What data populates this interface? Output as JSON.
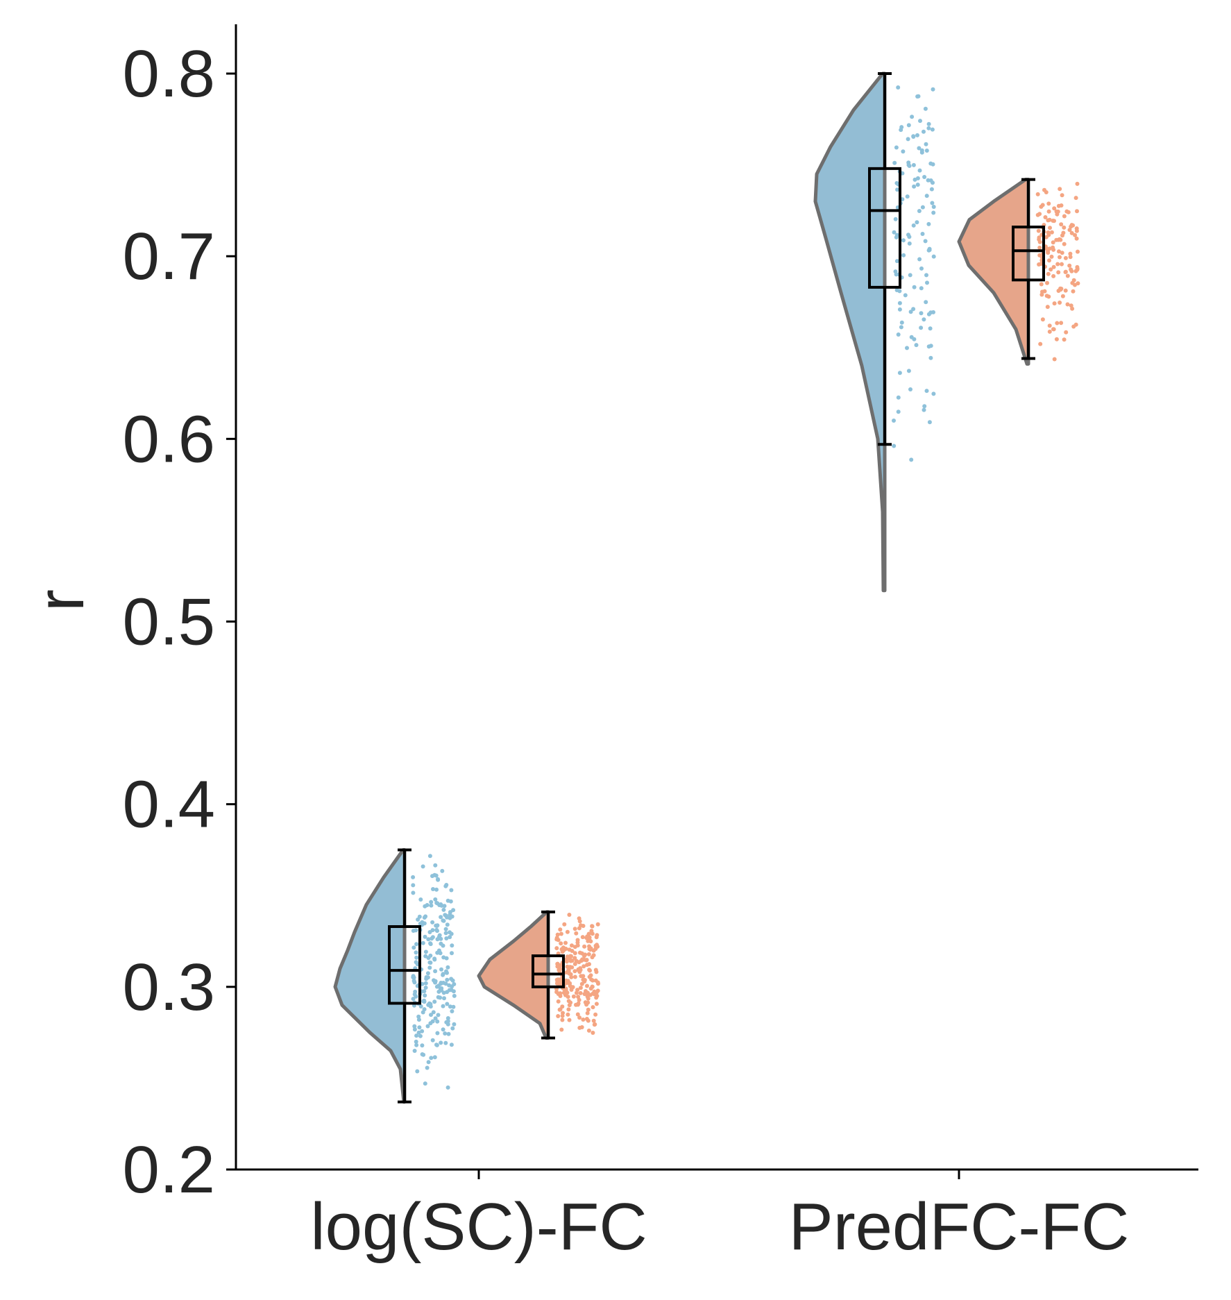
{
  "chart_data": {
    "type": "raincloud",
    "title": "",
    "xlabel": "",
    "ylabel": "r",
    "ylim": [
      0.2,
      0.825
    ],
    "yticks": [
      "0.2",
      "0.3",
      "0.4",
      "0.5",
      "0.6",
      "0.7",
      "0.8"
    ],
    "categories": [
      "log(SC)-FC",
      "PredFC-FC"
    ],
    "colors": {
      "group_a_fill": "#93bdd4",
      "group_a_points": "#8ec1da",
      "group_b_fill": "#e6a58a",
      "group_b_points": "#f4a582",
      "violin_edge": "#6e6e6e",
      "axis": "#000000"
    },
    "groups": [
      {
        "category": "log(SC)-FC",
        "series": [
          {
            "color_key": "a",
            "range": [
              0.237,
              0.375
            ],
            "box": {
              "whisker_low": 0.237,
              "q1": 0.291,
              "median": 0.309,
              "q3": 0.333,
              "whisker_high": 0.375
            },
            "density": [
              [
                0.237,
                0.01
              ],
              [
                0.255,
                0.06
              ],
              [
                0.265,
                0.2
              ],
              [
                0.275,
                0.5
              ],
              [
                0.29,
                0.9
              ],
              [
                0.3,
                1.0
              ],
              [
                0.31,
                0.93
              ],
              [
                0.32,
                0.82
              ],
              [
                0.33,
                0.72
              ],
              [
                0.345,
                0.55
              ],
              [
                0.36,
                0.3
              ],
              [
                0.375,
                0.02
              ]
            ],
            "n_points": 230
          },
          {
            "color_key": "b",
            "range": [
              0.272,
              0.341
            ],
            "box": {
              "whisker_low": 0.272,
              "q1": 0.3,
              "median": 0.307,
              "q3": 0.317,
              "whisker_high": 0.341
            },
            "density": [
              [
                0.272,
                0.03
              ],
              [
                0.28,
                0.12
              ],
              [
                0.29,
                0.5
              ],
              [
                0.3,
                0.92
              ],
              [
                0.306,
                1.0
              ],
              [
                0.315,
                0.84
              ],
              [
                0.325,
                0.5
              ],
              [
                0.333,
                0.25
              ],
              [
                0.341,
                0.02
              ]
            ],
            "n_points": 240
          }
        ]
      },
      {
        "category": "PredFC-FC",
        "series": [
          {
            "color_key": "a",
            "range": [
              0.517,
              0.8
            ],
            "box": {
              "whisker_low": 0.597,
              "q1": 0.683,
              "median": 0.725,
              "q3": 0.748,
              "whisker_high": 0.8
            },
            "density": [
              [
                0.517,
                0.02
              ],
              [
                0.56,
                0.03
              ],
              [
                0.6,
                0.1
              ],
              [
                0.64,
                0.33
              ],
              [
                0.68,
                0.63
              ],
              [
                0.71,
                0.85
              ],
              [
                0.73,
                1.0
              ],
              [
                0.745,
                0.98
              ],
              [
                0.76,
                0.78
              ],
              [
                0.78,
                0.45
              ],
              [
                0.8,
                0.03
              ]
            ],
            "n_points": 125
          },
          {
            "color_key": "b",
            "range": [
              0.641,
              0.742
            ],
            "box": {
              "whisker_low": 0.644,
              "q1": 0.687,
              "median": 0.703,
              "q3": 0.716,
              "whisker_high": 0.742
            },
            "density": [
              [
                0.641,
                0.02
              ],
              [
                0.66,
                0.18
              ],
              [
                0.68,
                0.5
              ],
              [
                0.695,
                0.86
              ],
              [
                0.708,
                1.0
              ],
              [
                0.72,
                0.85
              ],
              [
                0.73,
                0.5
              ],
              [
                0.742,
                0.04
              ]
            ],
            "n_points": 140
          }
        ]
      }
    ]
  }
}
